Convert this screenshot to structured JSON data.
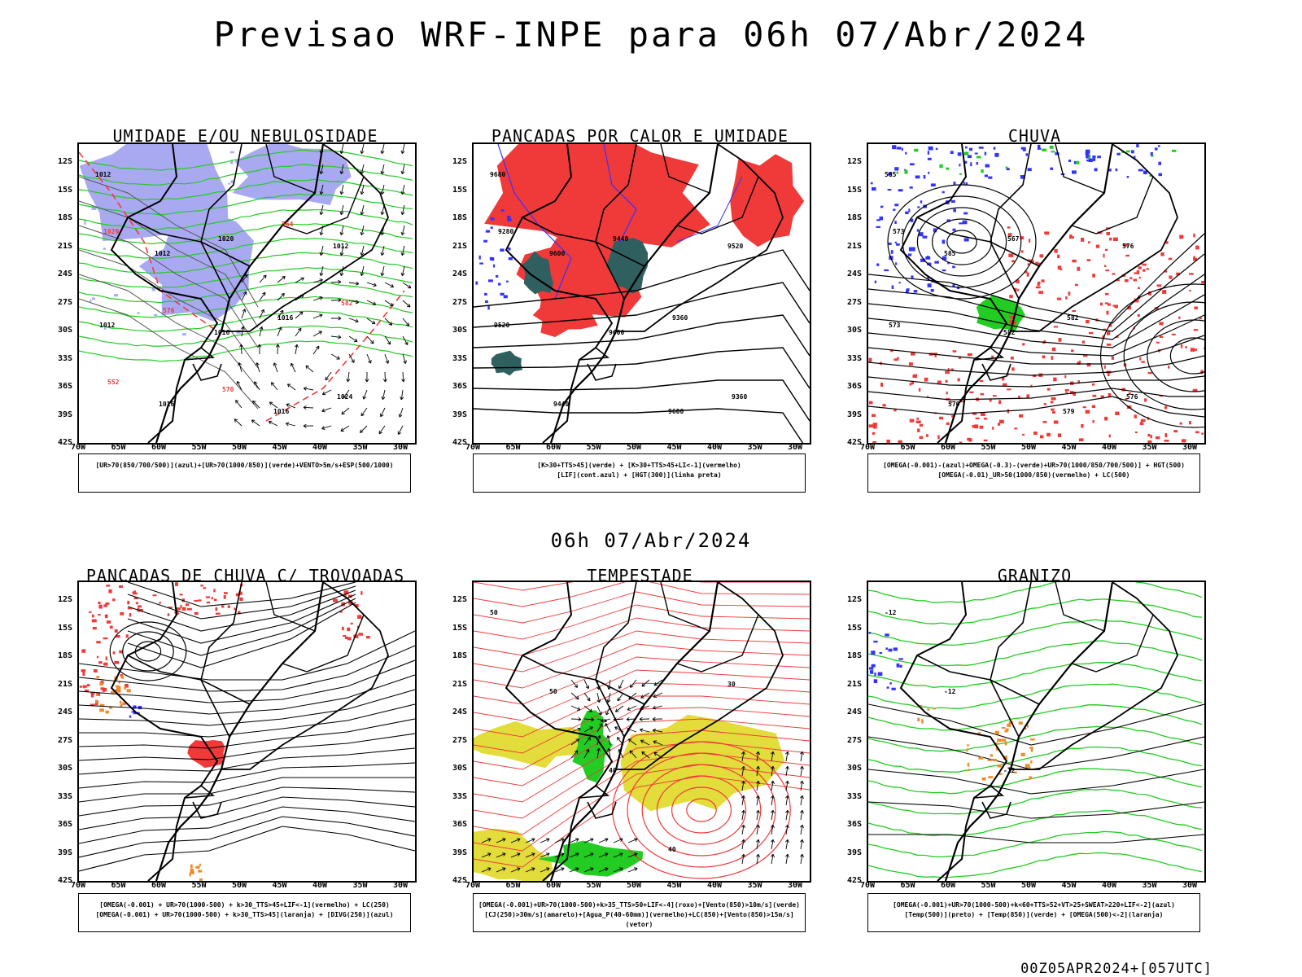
{
  "title": "Previsao WRF-INPE  para 06h 07/Abr/2024",
  "mid_label": "06h 07/Abr/2024",
  "footer": "00Z05APR2024+[057UTC]",
  "lat_ticks": [
    "12S",
    "15S",
    "18S",
    "21S",
    "24S",
    "27S",
    "30S",
    "33S",
    "36S",
    "39S",
    "42S"
  ],
  "lon_ticks": [
    "70W",
    "65W",
    "60W",
    "55W",
    "50W",
    "45W",
    "40W",
    "35W",
    "30W"
  ],
  "panels": [
    {
      "title": "UMIDADE E/OU NEBULOSIDADE",
      "legend": [
        "[UR>70(850/700/500)](azul)+[UR>70(1000/850)](verde)+VENTO>5m/s+ESP(500/1000)"
      ],
      "labels": [
        "1012",
        "1012",
        "1016",
        "1016",
        "1012",
        "1012",
        "1016",
        "1020",
        "1016",
        "1024",
        "1020",
        "576",
        "570",
        "564",
        "582",
        "552"
      ]
    },
    {
      "title": "PANCADAS POR CALOR E UMIDADE",
      "legend": [
        "[K>30+TTS>45](verde) + [K>30+TTS>45+LI<-1](vermelho)",
        "[LIF](cont.azul) + [HGT(300)](linha preta)"
      ],
      "labels": [
        "9680",
        "9600",
        "9600",
        "9600",
        "9520",
        "9520",
        "9440",
        "9440",
        "9360",
        "9360",
        "9280"
      ]
    },
    {
      "title": "CHUVA",
      "legend": [
        "[OMEGA(-0.001)-(azul)+OMEGA(-0.3)-(verde)+UR>70(1000/850/700/500)] + HGT(500)",
        "[OMEGA(-0.01)_UR>50(1000/850)(vermelho) + LC(500)"
      ],
      "labels": [
        "585",
        "585",
        "582",
        "579",
        "576",
        "573",
        "570",
        "567",
        "582",
        "576",
        "573"
      ]
    },
    {
      "title": "PANCADAS DE CHUVA C/ TROVOADAS",
      "legend": [
        "[OMEGA(-0.001) + UR>70(1000-500) + k>30_TTS>45+LIF<-1](vermelho) + LC(250)",
        "[OMEGA(-0.001) + UR>70(1000-500) + k>30_TTS>45](laranja) + [DIVG(250)](azul)"
      ],
      "labels": []
    },
    {
      "title": "TEMPESTADE",
      "legend": [
        "[OMEGA(-0.001)+UR>70(1000-500)+k>35_TTS>50+LIF<-4](roxo)+[Vento(850)>10m/s](verde)",
        "[CJ(250)>30m/s](amarelo)+[Agua_P(40-60mm)](vermelho)+LC(850)+[Vento(850)>15m/s](vetor)"
      ],
      "labels": [
        "50",
        "50",
        "40",
        "40",
        "30"
      ]
    },
    {
      "title": "GRANIZO",
      "legend": [
        "[OMEGA(-0.001)+UR>70(1000-500)+k<60+TTS>52+VT>25+SWEAT>220+LIF<-2](azul)",
        "[Temp(500)](preto) + [Temp(850)](verde) + [OMEGA(500)<-2](laranja)"
      ],
      "labels": [
        "-12",
        "-12",
        "-12"
      ]
    }
  ],
  "colors": {
    "blue_shade": "#a9a9f2",
    "blue": "#3333ff",
    "green": "#22cc22",
    "red": "#f03a3a",
    "dark_teal": "#2f5f5f",
    "yellow": "#e2dd3a",
    "orange": "#f08a2a",
    "black": "#000000"
  }
}
